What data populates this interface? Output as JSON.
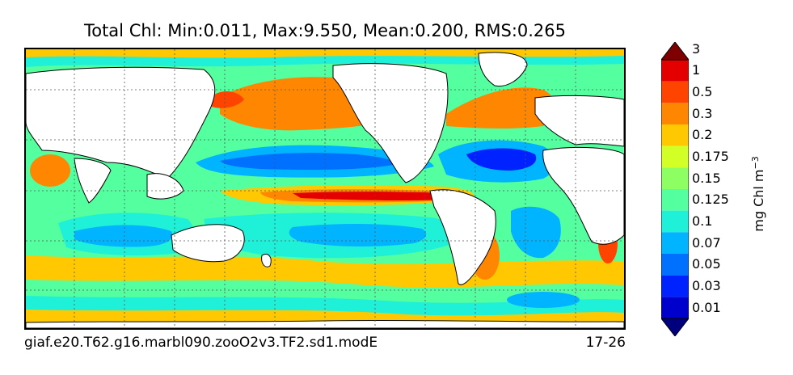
{
  "title": "Total Chl: Min:0.011, Max:9.550, Mean:0.200, RMS:0.265",
  "footer": {
    "case_name": "giaf.e20.T62.g16.marbl090.zooO2v3.TF2.sd1.modE",
    "year_range": "17-26"
  },
  "colorbar": {
    "units_text": "mg Chl m",
    "units_exponent": "−3",
    "levels": [
      "0.01",
      "0.03",
      "0.05",
      "0.07",
      "0.1",
      "0.125",
      "0.15",
      "0.175",
      "0.2",
      "0.3",
      "0.5",
      "1",
      "3"
    ],
    "colors": [
      "#00007f",
      "#0000cc",
      "#0022ff",
      "#0070ff",
      "#00b4ff",
      "#1ff0d8",
      "#54ff9f",
      "#8eff63",
      "#d1ff26",
      "#ffc800",
      "#ff8600",
      "#ff4400",
      "#e40000",
      "#7f0000"
    ],
    "extend": "both"
  },
  "map": {
    "projection": "equirectangular",
    "gridlines": "dotted",
    "land_color": "#ffffff",
    "coastline_color": "#000000"
  }
}
